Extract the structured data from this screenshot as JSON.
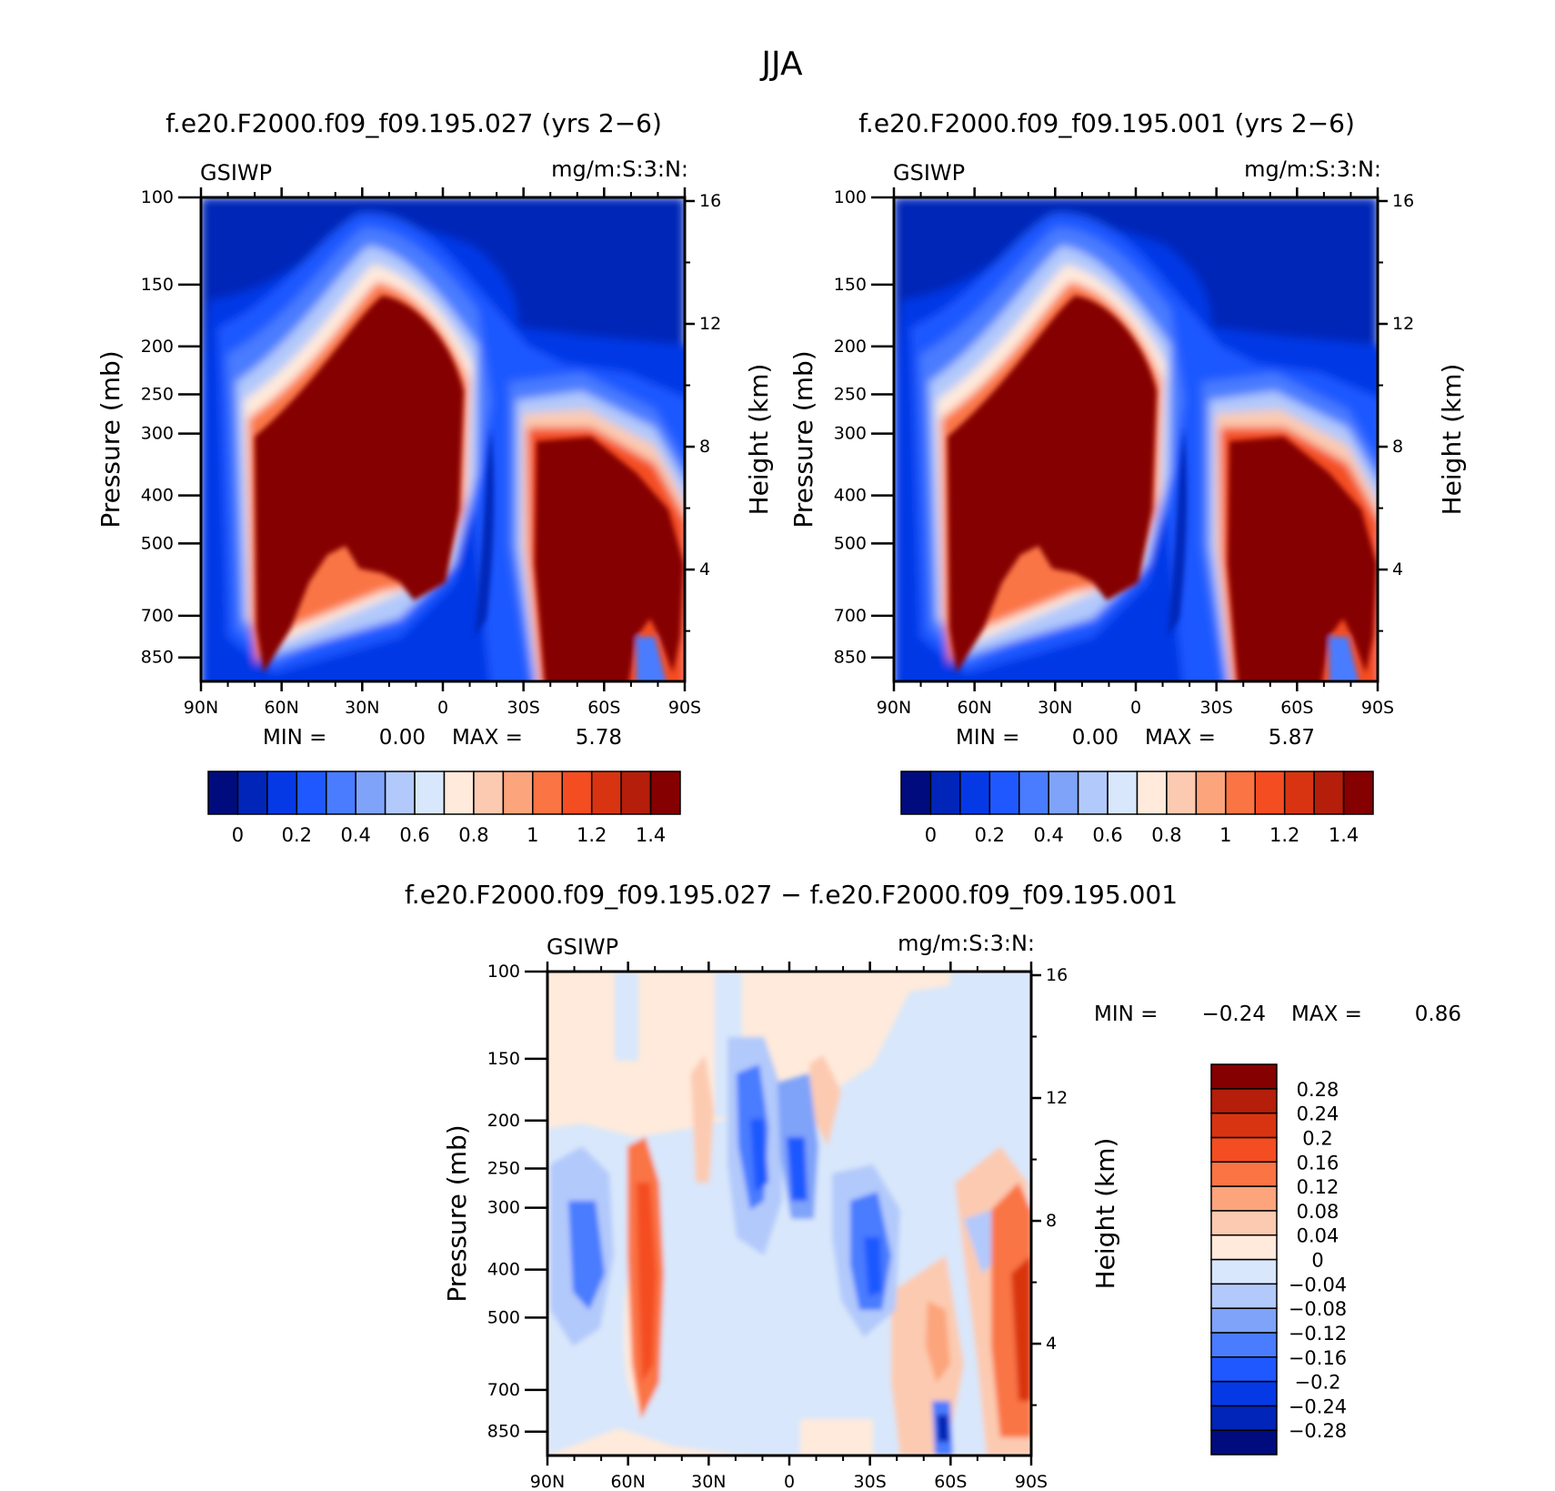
{
  "main_title": "JJA",
  "colors": {
    "abs_palette": [
      "#000c7d",
      "#0025b8",
      "#0639e6",
      "#1f58ff",
      "#4a7cff",
      "#7fa3f9",
      "#b2c9fb",
      "#d8e7fb",
      "#ffeadb",
      "#fccab0",
      "#fca47c",
      "#fa7444",
      "#f44d22",
      "#d93411",
      "#b41e0a",
      "#850000"
    ],
    "diff_palette": [
      "#000c7d",
      "#0025b8",
      "#0639e6",
      "#1f58ff",
      "#4a7cff",
      "#7fa3f9",
      "#b2c9fb",
      "#d8e7fb",
      "#ffeadb",
      "#fccab0",
      "#fca47c",
      "#fa7444",
      "#f44d22",
      "#d93411",
      "#b41e0a",
      "#850000"
    ]
  },
  "chart_data": [
    {
      "type": "heatmap",
      "title": "f.e20.F2000.f09_f09.195.027 (yrs 2−6)",
      "variable": "GSIWP",
      "units": "mg/m:S:3:N:",
      "ylabel": "Pressure (mb)",
      "y2label": "Height (km)",
      "x_ticks": [
        "90N",
        "60N",
        "30N",
        "0",
        "30S",
        "60S",
        "90S"
      ],
      "y_ticks": [
        "100",
        "150",
        "200",
        "250",
        "300",
        "400",
        "500",
        "700",
        "850"
      ],
      "y2_ticks": [
        "16",
        "12",
        "8",
        "4"
      ],
      "min_label": "MIN =",
      "min_value": "0.00",
      "max_label": "MAX =",
      "max_value": "5.78",
      "colorbar_labels": [
        "0",
        "0.2",
        "0.4",
        "0.6",
        "0.8",
        "1",
        "1.2",
        "1.4"
      ]
    },
    {
      "type": "heatmap",
      "title": "f.e20.F2000.f09_f09.195.001 (yrs 2−6)",
      "variable": "GSIWP",
      "units": "mg/m:S:3:N:",
      "ylabel": "Pressure (mb)",
      "y2label": "Height (km)",
      "x_ticks": [
        "90N",
        "60N",
        "30N",
        "0",
        "30S",
        "60S",
        "90S"
      ],
      "y_ticks": [
        "100",
        "150",
        "200",
        "250",
        "300",
        "400",
        "500",
        "700",
        "850"
      ],
      "y2_ticks": [
        "16",
        "12",
        "8",
        "4"
      ],
      "min_label": "MIN =",
      "min_value": "0.00",
      "max_label": "MAX =",
      "max_value": "5.87",
      "colorbar_labels": [
        "0",
        "0.2",
        "0.4",
        "0.6",
        "0.8",
        "1",
        "1.2",
        "1.4"
      ]
    },
    {
      "type": "heatmap",
      "title": "f.e20.F2000.f09_f09.195.027 − f.e20.F2000.f09_f09.195.001",
      "variable": "GSIWP",
      "units": "mg/m:S:3:N:",
      "ylabel": "Pressure (mb)",
      "y2label": "Height (km)",
      "x_ticks": [
        "90N",
        "60N",
        "30N",
        "0",
        "30S",
        "60S",
        "90S"
      ],
      "y_ticks": [
        "100",
        "150",
        "200",
        "250",
        "300",
        "400",
        "500",
        "700",
        "850"
      ],
      "y2_ticks": [
        "16",
        "12",
        "8",
        "4"
      ],
      "min_label": "MIN =",
      "min_value": "−0.24",
      "max_label": "MAX =",
      "max_value": "0.86",
      "colorbar_labels": [
        "0.28",
        "0.24",
        "0.2",
        "0.16",
        "0.12",
        "0.08",
        "0.04",
        "0",
        "−0.04",
        "−0.08",
        "−0.12",
        "−0.16",
        "−0.2",
        "−0.24",
        "−0.28"
      ]
    }
  ]
}
